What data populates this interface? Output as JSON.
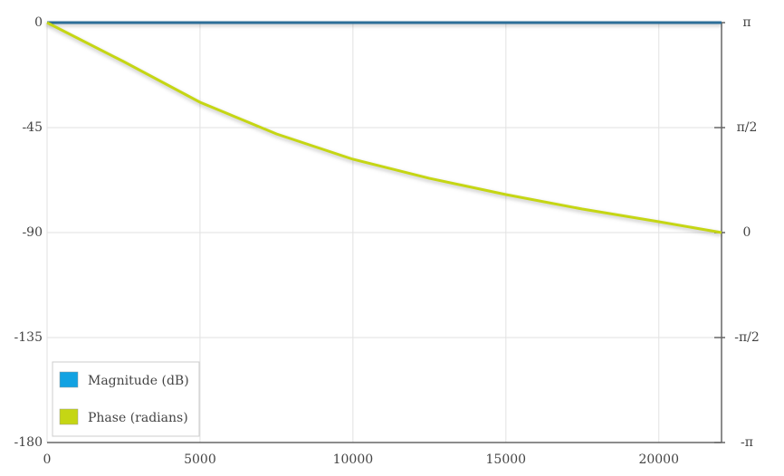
{
  "chart_data": {
    "type": "line",
    "x": [
      0,
      2500,
      5000,
      7500,
      10000,
      12500,
      15000,
      17500,
      20000,
      22050
    ],
    "series": [
      {
        "name": "Magnitude (dB)",
        "color": "#12a2e2",
        "line_color": "#2c6e98",
        "values": [
          0,
          0,
          0,
          0,
          0,
          0,
          0,
          0,
          0,
          0
        ]
      },
      {
        "name": "Phase (radians)",
        "color": "#c5d614",
        "axis": "y2",
        "values": [
          3.1416,
          2.559,
          1.95,
          1.476,
          1.097,
          0.812,
          0.569,
          0.352,
          0.162,
          0
        ]
      }
    ],
    "xlim": [
      0,
      22050
    ],
    "xticks": [
      0,
      5000,
      10000,
      15000,
      20000
    ],
    "ylim": [
      -180,
      0
    ],
    "yticks": [
      0,
      -45,
      -90,
      -135,
      -180
    ],
    "y2lim": [
      -3.14159,
      3.14159
    ],
    "y2ticks": [
      {
        "value": 3.14159,
        "label": "π"
      },
      {
        "value": 1.5708,
        "label": "π/2"
      },
      0,
      {
        "value": -1.5708,
        "label": "-π/2"
      },
      {
        "value": -3.14159,
        "label": "-π"
      }
    ],
    "grid": true,
    "legend": "lower left"
  }
}
